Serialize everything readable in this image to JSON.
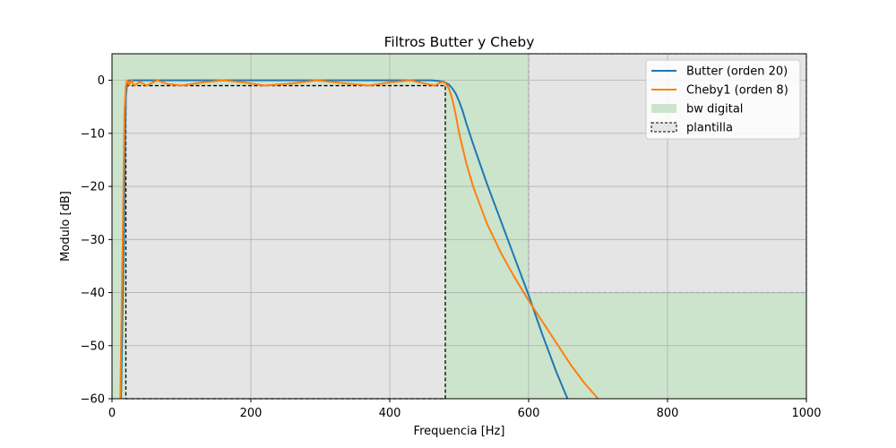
{
  "chart_data": {
    "type": "line",
    "title": "Filtros Butter y Cheby",
    "xlabel": "Frequencia [Hz]",
    "ylabel": "Modulo [dB]",
    "xlim": [
      0,
      1000
    ],
    "ylim": [
      -60,
      5
    ],
    "xticks": [
      0,
      200,
      400,
      600,
      800,
      1000
    ],
    "yticks": [
      0,
      -10,
      -20,
      -30,
      -40,
      -50,
      -60
    ],
    "grid": true,
    "legend_position": "top-right",
    "series": [
      {
        "name": "Butter (orden 20)",
        "color": "#1f77b4",
        "x": [
          13,
          15,
          16,
          17,
          18,
          19,
          20,
          22,
          25,
          30,
          50,
          100,
          200,
          300,
          400,
          440,
          460,
          470,
          478,
          485,
          490,
          495,
          500,
          505,
          510,
          520,
          540,
          560,
          580,
          600,
          620,
          640,
          656
        ],
        "y": [
          -60,
          -45,
          -38,
          -30,
          -20,
          -10,
          -3,
          -0.5,
          0,
          0,
          0,
          0,
          0,
          0,
          0,
          0,
          0,
          -0.1,
          -0.3,
          -0.8,
          -1.5,
          -2.5,
          -4,
          -5.8,
          -8,
          -12,
          -19.5,
          -26.5,
          -33.5,
          -40.5,
          -48,
          -55,
          -60
        ]
      },
      {
        "name": "Cheby1 (orden 8)",
        "color": "#ff7f0e",
        "x": [
          12,
          14,
          16,
          17,
          18,
          20,
          22,
          25,
          28,
          32,
          40,
          50,
          65,
          80,
          100,
          130,
          160,
          190,
          220,
          260,
          295,
          330,
          370,
          400,
          430,
          450,
          465,
          475,
          480,
          485,
          490,
          495,
          500,
          510,
          520,
          540,
          560,
          580,
          600,
          620,
          640,
          660,
          680,
          700
        ],
        "y": [
          -60,
          -42,
          -25,
          -15,
          -6,
          -1,
          0,
          -0.9,
          0,
          -1,
          -0.3,
          -1,
          0,
          -0.7,
          -1,
          -0.4,
          0,
          -0.4,
          -1,
          -0.6,
          0,
          -0.5,
          -1,
          -0.4,
          0,
          -0.6,
          -1,
          -0.3,
          -0.5,
          -1.5,
          -3.5,
          -6.5,
          -10,
          -15.5,
          -20,
          -27,
          -32.5,
          -37.2,
          -41.5,
          -45.5,
          -49.5,
          -53.5,
          -57,
          -60
        ]
      }
    ],
    "shaded_regions": [
      {
        "name": "bw digital",
        "color": "#cce4cc",
        "x_range": [
          0,
          600
        ],
        "y_range": [
          -60,
          5
        ],
        "extra": {
          "x_range": [
            600,
            1000
          ],
          "y_range": [
            -60,
            -40
          ]
        }
      },
      {
        "name": "plantilla",
        "color": "#e5e5e5",
        "boxes": [
          {
            "x_range": [
              20,
              480
            ],
            "y_range": [
              -60,
              -1
            ],
            "edge": "#000000"
          },
          {
            "x_range": [
              600,
              1000
            ],
            "y_range": [
              -40,
              5
            ],
            "edge": "#aaaaaa"
          }
        ]
      }
    ],
    "legend": [
      {
        "label": "Butter (orden 20)",
        "kind": "line",
        "color": "#1f77b4"
      },
      {
        "label": "Cheby1 (orden 8)",
        "kind": "line",
        "color": "#ff7f0e"
      },
      {
        "label": "bw digital",
        "kind": "patch",
        "color": "#cce4cc"
      },
      {
        "label": "plantilla",
        "kind": "dashed-patch",
        "color": "#e5e5e5"
      }
    ]
  }
}
